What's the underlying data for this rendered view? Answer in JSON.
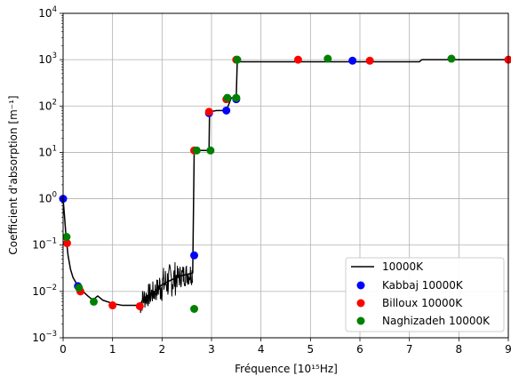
{
  "chart_data": {
    "type": "scatter",
    "xlabel": "Fréquence [10¹⁵Hz]",
    "ylabel": "Coefficient d'absorption [m⁻¹]",
    "xlim": [
      0,
      9
    ],
    "ylim": [
      0.001,
      10000
    ],
    "yscale": "log",
    "grid": true,
    "legend_position": "lower-right",
    "x_ticks": [
      0,
      1,
      2,
      3,
      4,
      5,
      6,
      7,
      8,
      9
    ],
    "x_tick_labels": [
      "0",
      "1",
      "2",
      "3",
      "4",
      "5",
      "6",
      "7",
      "8",
      "9"
    ],
    "y_ticks": [
      0.001,
      0.01,
      0.1,
      1,
      10,
      100,
      1000,
      10000
    ],
    "y_tick_labels": [
      {
        "base": "10",
        "exp": "−3"
      },
      {
        "base": "10",
        "exp": "−2"
      },
      {
        "base": "10",
        "exp": "−1"
      },
      {
        "base": "10",
        "exp": "0"
      },
      {
        "base": "10",
        "exp": "1"
      },
      {
        "base": "10",
        "exp": "2"
      },
      {
        "base": "10",
        "exp": "3"
      },
      {
        "base": "10",
        "exp": "4"
      }
    ],
    "series": [
      {
        "name": "10000K",
        "kind": "line",
        "color": "#000000",
        "x": [
          0.0,
          0.03,
          0.06,
          0.1,
          0.15,
          0.2,
          0.3,
          0.4,
          0.5,
          0.6,
          0.7,
          0.8,
          1.0,
          1.2,
          1.4,
          1.55,
          1.62,
          1.7,
          1.8,
          1.9,
          2.0,
          2.2,
          2.4,
          2.62,
          2.65,
          2.67,
          2.85,
          2.95,
          2.96,
          3.1,
          3.3,
          3.4,
          3.5,
          3.52,
          3.55,
          3.7,
          4.5,
          5.0,
          6.0,
          7.2,
          7.25,
          9.0
        ],
        "y": [
          1.0,
          0.4,
          0.15,
          0.06,
          0.03,
          0.02,
          0.013,
          0.01,
          0.008,
          0.0065,
          0.008,
          0.0065,
          0.0055,
          0.005,
          0.005,
          0.005,
          0.007,
          0.008,
          0.009,
          0.011,
          0.014,
          0.018,
          0.022,
          0.025,
          11.0,
          11.0,
          11.0,
          11.0,
          75,
          80,
          80,
          150,
          150,
          900,
          900,
          900,
          900,
          900,
          900,
          900,
          1000,
          1000
        ]
      },
      {
        "name": "Kabbaj 10000K",
        "kind": "scatter",
        "color": "#0000ff",
        "x": [
          0.0,
          0.3,
          2.65,
          2.95,
          3.3,
          3.5,
          5.85
        ],
        "y": [
          1.0,
          0.013,
          0.06,
          70,
          80,
          140,
          950
        ]
      },
      {
        "name": "Billoux 10000K",
        "kind": "scatter",
        "color": "#ff0000",
        "x": [
          0.08,
          0.35,
          1.0,
          1.55,
          2.65,
          2.95,
          3.3,
          3.5,
          4.75,
          6.2,
          9.0
        ],
        "y": [
          0.11,
          0.01,
          0.005,
          0.0048,
          11.0,
          75,
          140,
          1000,
          1000,
          950,
          1000
        ]
      },
      {
        "name": "Naghizadeh 10000K",
        "kind": "scatter",
        "color": "#008000",
        "x": [
          0.07,
          0.32,
          0.62,
          2.65,
          2.7,
          2.98,
          3.32,
          3.5,
          3.52,
          5.35,
          7.85
        ],
        "y": [
          0.15,
          0.012,
          0.006,
          0.0042,
          11.0,
          11.0,
          150,
          150,
          1000,
          1050,
          1050
        ]
      }
    ]
  }
}
